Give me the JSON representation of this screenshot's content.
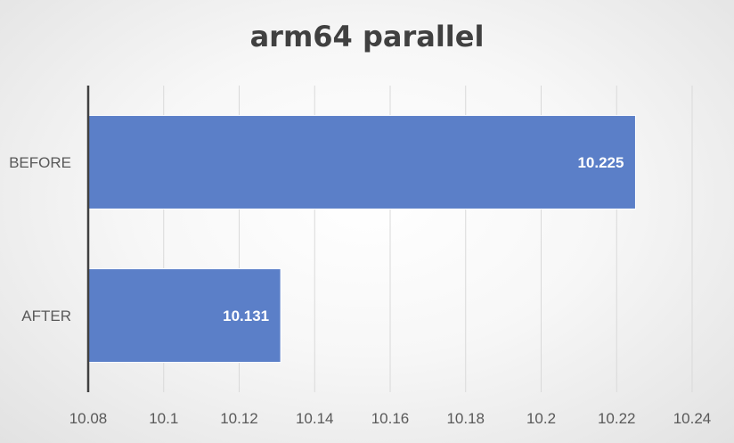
{
  "chart_data": {
    "type": "bar",
    "orientation": "horizontal",
    "title": "arm64 parallel",
    "categories": [
      "BEFORE",
      "AFTER"
    ],
    "values": [
      10.225,
      10.131
    ],
    "value_labels": [
      "10.225",
      "10.131"
    ],
    "xlim": [
      10.08,
      10.24
    ],
    "x_ticks": [
      "10.08",
      "10.1",
      "10.12",
      "10.14",
      "10.16",
      "10.18",
      "10.2",
      "10.22",
      "10.24"
    ],
    "grid": true,
    "legend": "none",
    "bar_color": "#5b7fc8",
    "label_color": "#ffffff"
  }
}
